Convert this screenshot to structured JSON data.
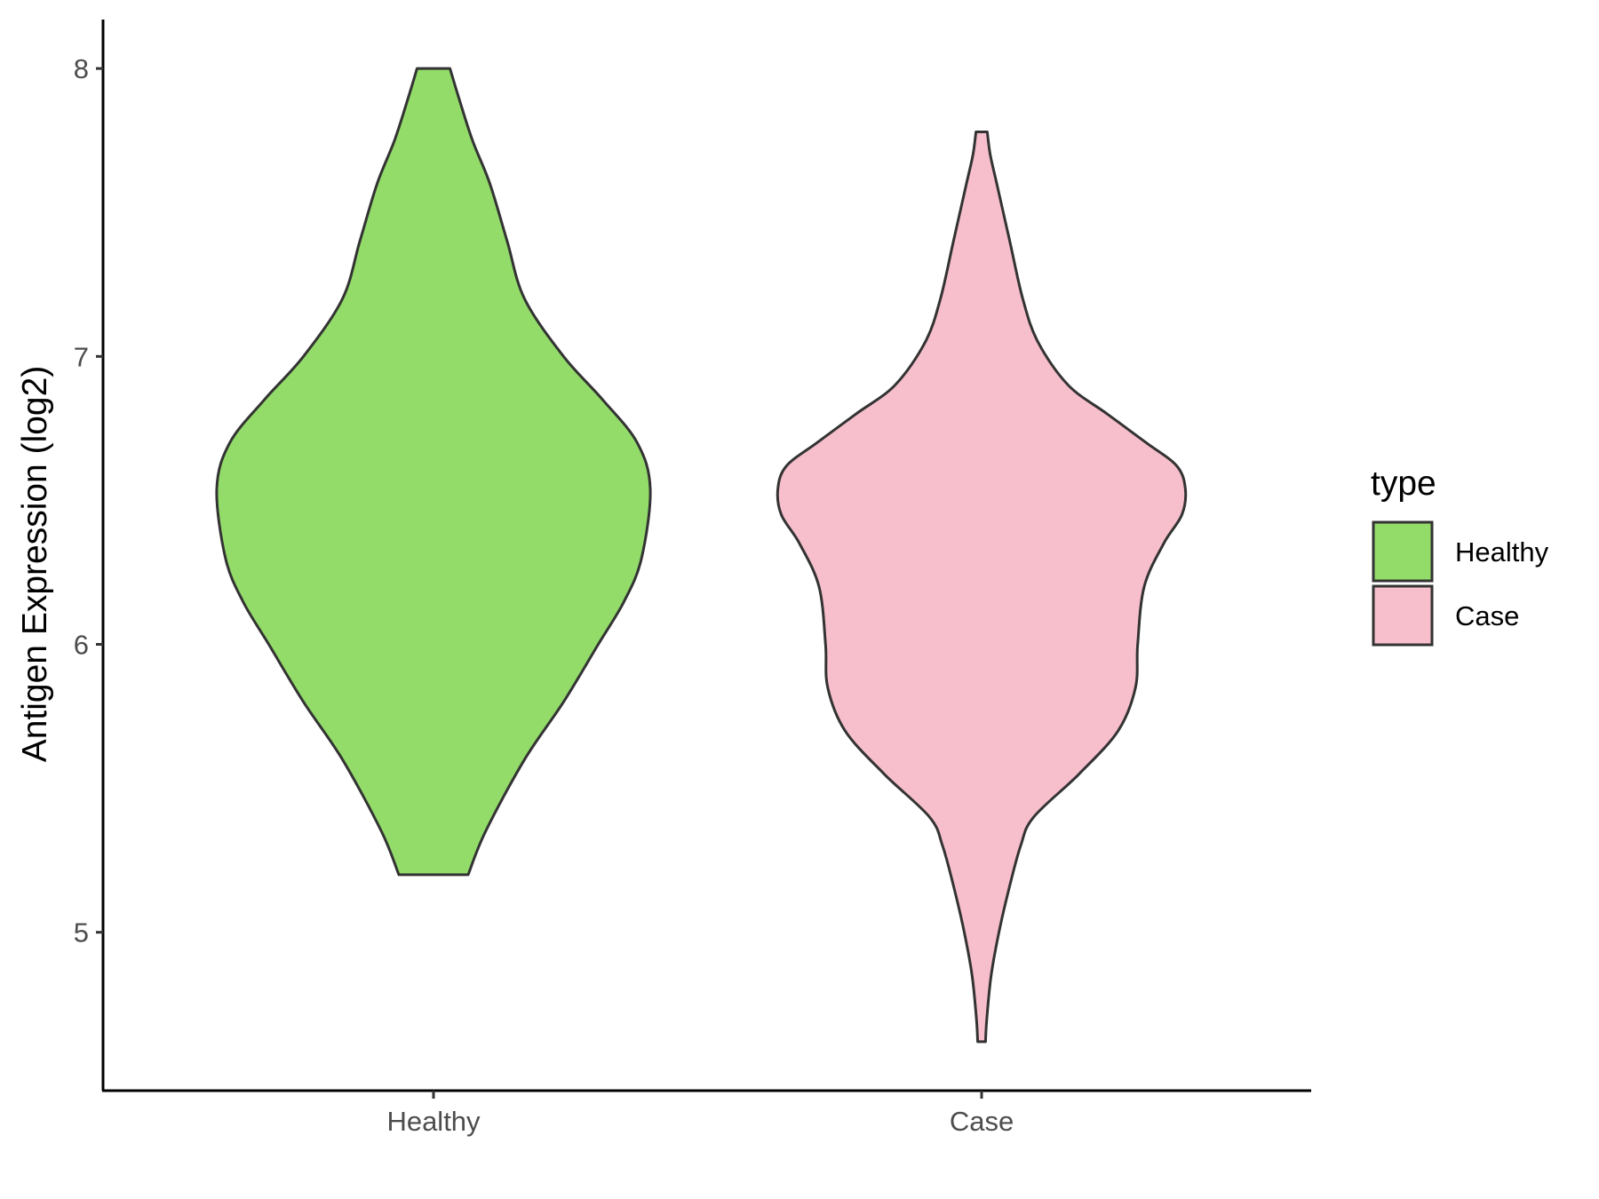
{
  "chart_data": {
    "type": "violin",
    "title": "",
    "xlabel": "",
    "ylabel": "Antigen Expression (log2)",
    "categories": [
      "Healthy",
      "Case"
    ],
    "ylim": [
      4.45,
      8.17
    ],
    "yticks": [
      "5",
      "6",
      "7",
      "8"
    ],
    "grid": false,
    "legend": {
      "title": "type",
      "position": "right",
      "entries": [
        "Healthy",
        "Case"
      ]
    },
    "series": [
      {
        "name": "Healthy",
        "color": "#93DC6A",
        "min": 5.2,
        "max": 8.0,
        "density": [
          [
            5.2,
            0.08
          ],
          [
            5.35,
            0.12
          ],
          [
            5.6,
            0.21
          ],
          [
            5.8,
            0.3
          ],
          [
            6.0,
            0.38
          ],
          [
            6.15,
            0.44
          ],
          [
            6.3,
            0.48
          ],
          [
            6.54,
            0.5
          ],
          [
            6.7,
            0.47
          ],
          [
            6.85,
            0.39
          ],
          [
            7.0,
            0.3
          ],
          [
            7.2,
            0.21
          ],
          [
            7.4,
            0.17
          ],
          [
            7.6,
            0.13
          ],
          [
            7.75,
            0.09
          ],
          [
            7.9,
            0.058
          ],
          [
            8.0,
            0.038
          ]
        ]
      },
      {
        "name": "Case",
        "color": "#F7BFCB",
        "min": 4.62,
        "max": 7.78,
        "density": [
          [
            4.62,
            0.009
          ],
          [
            4.7,
            0.012
          ],
          [
            4.85,
            0.022
          ],
          [
            5.0,
            0.04
          ],
          [
            5.15,
            0.063
          ],
          [
            5.3,
            0.09
          ],
          [
            5.4,
            0.12
          ],
          [
            5.55,
            0.225
          ],
          [
            5.7,
            0.315
          ],
          [
            5.85,
            0.355
          ],
          [
            6.0,
            0.36
          ],
          [
            6.2,
            0.375
          ],
          [
            6.35,
            0.42
          ],
          [
            6.45,
            0.462
          ],
          [
            6.54,
            0.47
          ],
          [
            6.62,
            0.45
          ],
          [
            6.7,
            0.38
          ],
          [
            6.8,
            0.29
          ],
          [
            6.9,
            0.2
          ],
          [
            7.05,
            0.13
          ],
          [
            7.2,
            0.095
          ],
          [
            7.4,
            0.065
          ],
          [
            7.6,
            0.035
          ],
          [
            7.7,
            0.02
          ],
          [
            7.78,
            0.013
          ]
        ]
      }
    ]
  }
}
